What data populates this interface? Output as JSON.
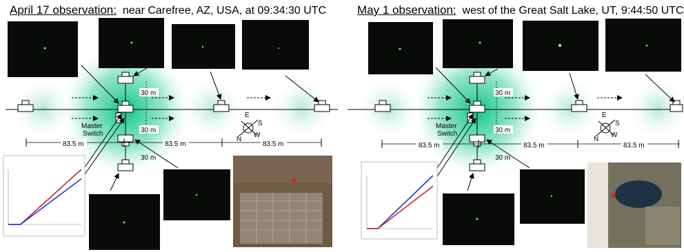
{
  "panels": [
    {
      "title_head": "April 17 observation:",
      "title_rest": "near Carefree, AZ, USA, at 09:34:30 UTC",
      "dist_labels": {
        "d30_upper": "30 m",
        "d30_mid": "30 m",
        "d30_lower": "30 m",
        "d83_left": "83.5 m",
        "d83_mid": "83.5 m",
        "d83_right": "83.5 m"
      },
      "master_switch": [
        "Master",
        "Switch"
      ],
      "compass": {
        "n": "N",
        "s": "S",
        "e": "E",
        "w": "W"
      },
      "chart_data": {
        "type": "line",
        "title": "",
        "series": [
          {
            "color": "#cc2222",
            "x": [
              0,
              20,
              120
            ],
            "y": [
              0,
              0,
              100
            ]
          },
          {
            "color": "#2233cc",
            "x": [
              0,
              20,
              120
            ],
            "y": [
              0,
              0,
              83
            ]
          }
        ]
      }
    },
    {
      "title_head": "May 1 observation:",
      "title_rest": "west of the Great Salt Lake, UT, 9:44:50 UTC",
      "dist_labels": {
        "d30_upper": "30 m",
        "d30_mid": "30 m",
        "d30_lower": "30 m",
        "d83_left": "83.5 m",
        "d83_mid": "83.5 m",
        "d83_right": "83.5 m"
      },
      "master_switch": [
        "Master",
        "Switch"
      ],
      "compass": {
        "n": "N",
        "s": "S",
        "e": "E",
        "w": "W"
      },
      "chart_data": {
        "type": "line",
        "title": "",
        "series": [
          {
            "color": "#2233cc",
            "x": [
              0,
              20,
              120
            ],
            "y": [
              0,
              0,
              100
            ]
          },
          {
            "color": "#cc2222",
            "x": [
              0,
              20,
              120
            ],
            "y": [
              0,
              0,
              80
            ]
          }
        ]
      }
    }
  ]
}
